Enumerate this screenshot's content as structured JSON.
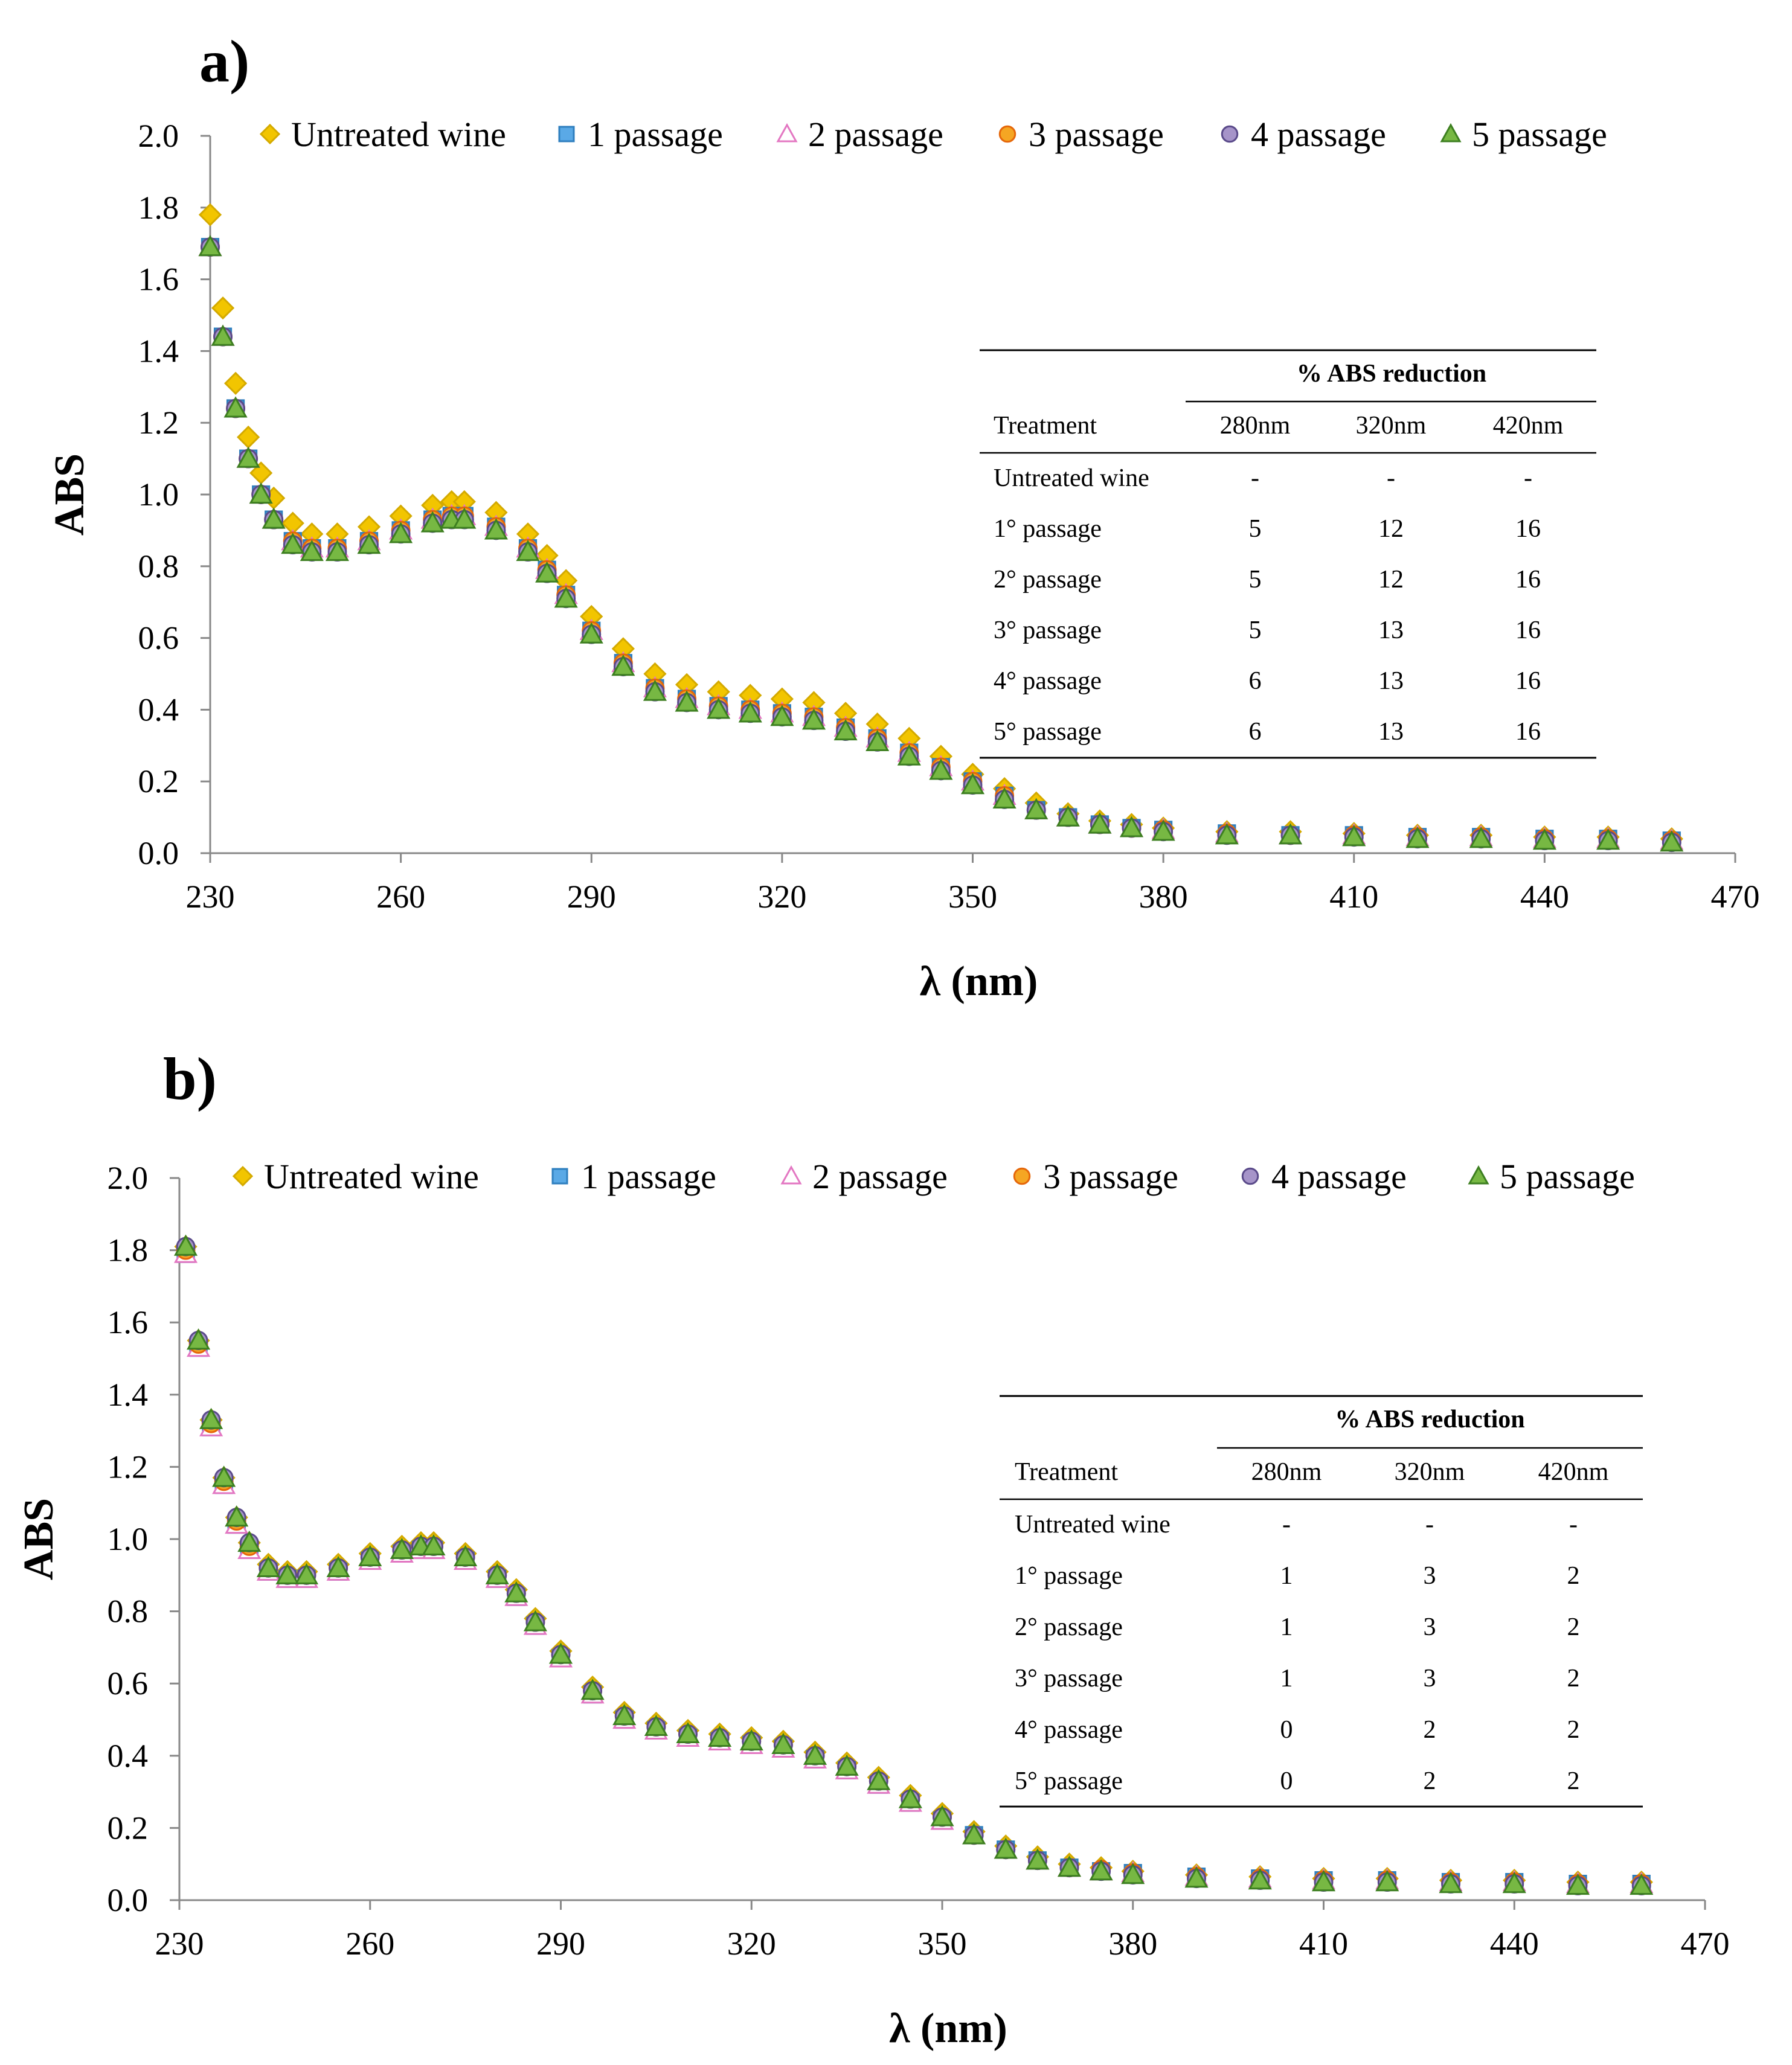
{
  "chart_data": [
    {
      "type": "scatter",
      "panel_label": "a)",
      "xlabel": "λ (nm)",
      "ylabel": "ABS",
      "xlim": [
        230,
        470
      ],
      "ylim": [
        0.0,
        2.0
      ],
      "x_ticks": [
        "230",
        "260",
        "290",
        "320",
        "350",
        "380",
        "410",
        "440",
        "470"
      ],
      "y_ticks": [
        "0.0",
        "0.2",
        "0.4",
        "0.6",
        "0.8",
        "1.0",
        "1.2",
        "1.4",
        "1.6",
        "1.8",
        "2.0"
      ],
      "legend_position": "top",
      "x": [
        230,
        232,
        234,
        236,
        238,
        240,
        243,
        246,
        250,
        255,
        260,
        265,
        268,
        270,
        275,
        280,
        283,
        286,
        290,
        295,
        300,
        305,
        310,
        315,
        320,
        325,
        330,
        335,
        340,
        345,
        350,
        355,
        360,
        365,
        370,
        375,
        380,
        390,
        400,
        410,
        420,
        430,
        440,
        450,
        460
      ],
      "series": [
        {
          "name": "Untreated wine",
          "values": [
            1.78,
            1.52,
            1.31,
            1.16,
            1.06,
            0.99,
            0.92,
            0.89,
            0.89,
            0.91,
            0.94,
            0.97,
            0.98,
            0.98,
            0.95,
            0.89,
            0.83,
            0.76,
            0.66,
            0.57,
            0.5,
            0.47,
            0.45,
            0.44,
            0.43,
            0.42,
            0.39,
            0.36,
            0.32,
            0.27,
            0.22,
            0.18,
            0.14,
            0.11,
            0.09,
            0.08,
            0.07,
            0.06,
            0.06,
            0.055,
            0.05,
            0.05,
            0.045,
            0.045,
            0.04
          ]
        },
        {
          "name": "1 passage",
          "values": [
            1.69,
            1.44,
            1.24,
            1.1,
            1.0,
            0.93,
            0.87,
            0.85,
            0.85,
            0.87,
            0.9,
            0.93,
            0.94,
            0.94,
            0.91,
            0.85,
            0.79,
            0.72,
            0.62,
            0.53,
            0.46,
            0.43,
            0.41,
            0.4,
            0.39,
            0.38,
            0.35,
            0.32,
            0.28,
            0.24,
            0.2,
            0.16,
            0.12,
            0.1,
            0.08,
            0.07,
            0.065,
            0.055,
            0.05,
            0.05,
            0.045,
            0.045,
            0.04,
            0.04,
            0.035
          ]
        },
        {
          "name": "2 passage",
          "values": [
            1.69,
            1.44,
            1.24,
            1.1,
            1.0,
            0.93,
            0.87,
            0.85,
            0.85,
            0.87,
            0.9,
            0.93,
            0.94,
            0.94,
            0.91,
            0.85,
            0.79,
            0.72,
            0.62,
            0.53,
            0.46,
            0.43,
            0.41,
            0.4,
            0.39,
            0.38,
            0.35,
            0.32,
            0.28,
            0.24,
            0.2,
            0.16,
            0.12,
            0.1,
            0.08,
            0.07,
            0.065,
            0.055,
            0.05,
            0.05,
            0.045,
            0.045,
            0.04,
            0.04,
            0.035
          ]
        },
        {
          "name": "3 passage",
          "values": [
            1.69,
            1.44,
            1.24,
            1.1,
            1.0,
            0.93,
            0.87,
            0.85,
            0.85,
            0.87,
            0.9,
            0.93,
            0.94,
            0.94,
            0.91,
            0.85,
            0.79,
            0.72,
            0.62,
            0.53,
            0.46,
            0.43,
            0.41,
            0.4,
            0.39,
            0.38,
            0.35,
            0.32,
            0.28,
            0.24,
            0.2,
            0.16,
            0.12,
            0.1,
            0.08,
            0.07,
            0.065,
            0.055,
            0.05,
            0.05,
            0.045,
            0.045,
            0.04,
            0.04,
            0.035
          ]
        },
        {
          "name": "4 passage",
          "values": [
            1.69,
            1.44,
            1.24,
            1.1,
            1.0,
            0.93,
            0.86,
            0.84,
            0.84,
            0.86,
            0.89,
            0.92,
            0.93,
            0.93,
            0.9,
            0.84,
            0.78,
            0.71,
            0.61,
            0.52,
            0.45,
            0.42,
            0.4,
            0.39,
            0.38,
            0.37,
            0.34,
            0.31,
            0.27,
            0.23,
            0.19,
            0.15,
            0.12,
            0.1,
            0.08,
            0.07,
            0.06,
            0.05,
            0.05,
            0.045,
            0.04,
            0.04,
            0.035,
            0.035,
            0.03
          ]
        },
        {
          "name": "5 passage",
          "values": [
            1.69,
            1.44,
            1.24,
            1.1,
            1.0,
            0.93,
            0.86,
            0.84,
            0.84,
            0.86,
            0.89,
            0.92,
            0.93,
            0.93,
            0.9,
            0.84,
            0.78,
            0.71,
            0.61,
            0.52,
            0.45,
            0.42,
            0.4,
            0.39,
            0.38,
            0.37,
            0.34,
            0.31,
            0.27,
            0.23,
            0.19,
            0.15,
            0.12,
            0.1,
            0.08,
            0.07,
            0.06,
            0.05,
            0.05,
            0.045,
            0.04,
            0.04,
            0.035,
            0.035,
            0.03
          ]
        }
      ],
      "table": {
        "group_header": "% ABS reduction",
        "columns": [
          "Treatment",
          "280nm",
          "320nm",
          "420nm"
        ],
        "rows": [
          [
            "Untreated wine",
            "-",
            "-",
            "-"
          ],
          [
            "1° passage",
            "5",
            "12",
            "16"
          ],
          [
            "2° passage",
            "5",
            "12",
            "16"
          ],
          [
            "3° passage",
            "5",
            "13",
            "16"
          ],
          [
            "4° passage",
            "6",
            "13",
            "16"
          ],
          [
            "5° passage",
            "6",
            "13",
            "16"
          ]
        ]
      }
    },
    {
      "type": "scatter",
      "panel_label": "b)",
      "xlabel": "λ (nm)",
      "ylabel": "ABS",
      "xlim": [
        230,
        470
      ],
      "ylim": [
        0.0,
        2.0
      ],
      "x_ticks": [
        "230",
        "260",
        "290",
        "320",
        "350",
        "380",
        "410",
        "440",
        "470"
      ],
      "y_ticks": [
        "0.0",
        "0.2",
        "0.4",
        "0.6",
        "0.8",
        "1.0",
        "1.2",
        "1.4",
        "1.6",
        "1.8",
        "2.0"
      ],
      "legend_position": "top",
      "x": [
        231,
        233,
        235,
        237,
        239,
        241,
        244,
        247,
        250,
        255,
        260,
        265,
        268,
        270,
        275,
        280,
        283,
        286,
        290,
        295,
        300,
        305,
        310,
        315,
        320,
        325,
        330,
        335,
        340,
        345,
        350,
        355,
        360,
        365,
        370,
        375,
        380,
        390,
        400,
        410,
        420,
        430,
        440,
        450,
        460
      ],
      "series": [
        {
          "name": "Untreated wine",
          "values": [
            1.81,
            1.55,
            1.33,
            1.17,
            1.06,
            0.99,
            0.93,
            0.91,
            0.91,
            0.93,
            0.96,
            0.98,
            0.99,
            0.99,
            0.96,
            0.91,
            0.86,
            0.78,
            0.69,
            0.59,
            0.52,
            0.49,
            0.47,
            0.46,
            0.45,
            0.44,
            0.41,
            0.38,
            0.34,
            0.29,
            0.24,
            0.19,
            0.15,
            0.12,
            0.1,
            0.09,
            0.08,
            0.07,
            0.065,
            0.06,
            0.06,
            0.055,
            0.055,
            0.05,
            0.05
          ]
        },
        {
          "name": "1 passage",
          "values": [
            1.79,
            1.53,
            1.31,
            1.15,
            1.04,
            0.97,
            0.91,
            0.89,
            0.89,
            0.91,
            0.94,
            0.96,
            0.97,
            0.97,
            0.94,
            0.89,
            0.84,
            0.76,
            0.67,
            0.57,
            0.5,
            0.47,
            0.45,
            0.44,
            0.43,
            0.42,
            0.39,
            0.36,
            0.32,
            0.27,
            0.22,
            0.18,
            0.14,
            0.11,
            0.09,
            0.08,
            0.075,
            0.065,
            0.06,
            0.055,
            0.055,
            0.05,
            0.05,
            0.045,
            0.045
          ]
        },
        {
          "name": "2 passage",
          "values": [
            1.79,
            1.53,
            1.31,
            1.15,
            1.04,
            0.97,
            0.91,
            0.89,
            0.89,
            0.91,
            0.94,
            0.96,
            0.97,
            0.97,
            0.94,
            0.89,
            0.84,
            0.76,
            0.67,
            0.57,
            0.5,
            0.47,
            0.45,
            0.44,
            0.43,
            0.42,
            0.39,
            0.36,
            0.32,
            0.27,
            0.22,
            0.18,
            0.14,
            0.11,
            0.09,
            0.08,
            0.075,
            0.065,
            0.06,
            0.055,
            0.055,
            0.05,
            0.05,
            0.045,
            0.045
          ]
        },
        {
          "name": "3 passage",
          "values": [
            1.8,
            1.54,
            1.32,
            1.16,
            1.05,
            0.98,
            0.92,
            0.9,
            0.9,
            0.92,
            0.95,
            0.97,
            0.98,
            0.98,
            0.95,
            0.9,
            0.85,
            0.77,
            0.68,
            0.58,
            0.51,
            0.48,
            0.46,
            0.45,
            0.44,
            0.43,
            0.4,
            0.37,
            0.33,
            0.28,
            0.23,
            0.18,
            0.14,
            0.11,
            0.09,
            0.085,
            0.075,
            0.065,
            0.06,
            0.055,
            0.055,
            0.05,
            0.05,
            0.045,
            0.045
          ]
        },
        {
          "name": "4 passage",
          "values": [
            1.81,
            1.55,
            1.33,
            1.17,
            1.06,
            0.99,
            0.92,
            0.9,
            0.9,
            0.92,
            0.95,
            0.97,
            0.98,
            0.98,
            0.95,
            0.9,
            0.85,
            0.77,
            0.68,
            0.58,
            0.51,
            0.48,
            0.46,
            0.45,
            0.44,
            0.43,
            0.4,
            0.37,
            0.33,
            0.28,
            0.23,
            0.18,
            0.14,
            0.11,
            0.09,
            0.08,
            0.07,
            0.06,
            0.055,
            0.05,
            0.05,
            0.045,
            0.045,
            0.04,
            0.04
          ]
        },
        {
          "name": "5 passage",
          "values": [
            1.81,
            1.55,
            1.33,
            1.17,
            1.06,
            0.99,
            0.92,
            0.9,
            0.9,
            0.92,
            0.95,
            0.97,
            0.98,
            0.98,
            0.95,
            0.9,
            0.85,
            0.77,
            0.68,
            0.58,
            0.51,
            0.48,
            0.46,
            0.45,
            0.44,
            0.43,
            0.4,
            0.37,
            0.33,
            0.28,
            0.23,
            0.18,
            0.14,
            0.11,
            0.09,
            0.08,
            0.07,
            0.06,
            0.055,
            0.05,
            0.05,
            0.045,
            0.045,
            0.04,
            0.04
          ]
        }
      ],
      "table": {
        "group_header": "% ABS reduction",
        "columns": [
          "Treatment",
          "280nm",
          "320nm",
          "420nm"
        ],
        "rows": [
          [
            "Untreated wine",
            "-",
            "-",
            "-"
          ],
          [
            "1° passage",
            "1",
            "3",
            "2"
          ],
          [
            "2° passage",
            "1",
            "3",
            "2"
          ],
          [
            "3° passage",
            "1",
            "3",
            "2"
          ],
          [
            "4° passage",
            "0",
            "2",
            "2"
          ],
          [
            "5° passage",
            "0",
            "2",
            "2"
          ]
        ]
      }
    }
  ],
  "styles": {
    "Untreated wine": {
      "marker": "diamond",
      "fill": "#F2C500",
      "stroke": "#D4AA00"
    },
    "1 passage": {
      "marker": "square",
      "fill": "#5AA9E6",
      "stroke": "#2F7FBF"
    },
    "2 passage": {
      "marker": "triangle-open",
      "fill": "#FFFFFF",
      "stroke": "#E377C2"
    },
    "3 passage": {
      "marker": "circle",
      "fill": "#F5A623",
      "stroke": "#E5670A"
    },
    "4 passage": {
      "marker": "circle",
      "fill": "#A694C9",
      "stroke": "#5A4A8A"
    },
    "5 passage": {
      "marker": "triangle",
      "fill": "#77B843",
      "stroke": "#3D7F20"
    }
  }
}
